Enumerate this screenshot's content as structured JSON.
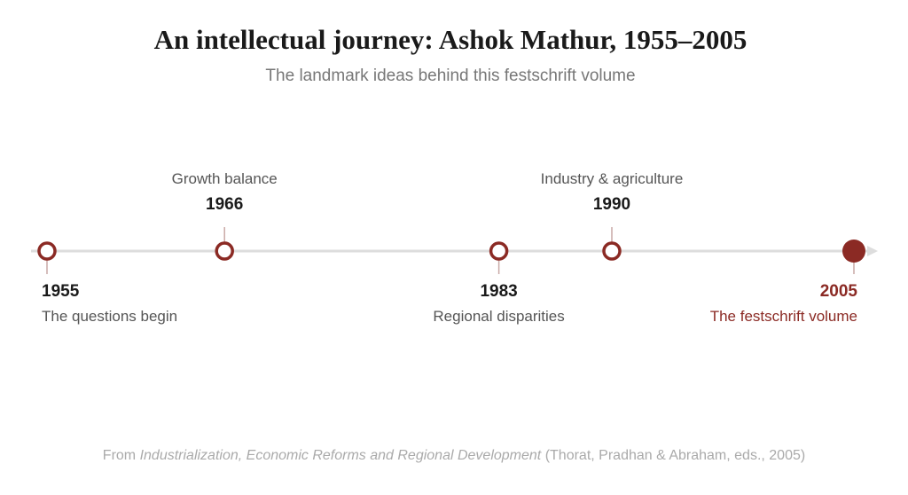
{
  "header": {
    "title": "An intellectual journey: Ashok Mathur, 1955–2005",
    "subtitle": "The landmark ideas behind this festschrift volume"
  },
  "events": [
    {
      "year": 1955,
      "label": "The questions begin"
    },
    {
      "year": 1966,
      "label": "Growth balance"
    },
    {
      "year": 1983,
      "label": "Regional disparities"
    },
    {
      "year": 1990,
      "label": "Industry & agriculture"
    },
    {
      "year": 2005,
      "label": "The festschrift volume"
    }
  ],
  "footer": {
    "prefix": "From",
    "book": "Industrialization, Economic Reforms and Regional Development",
    "suffix": "(Thorat, Pradhan & Abraham, eds., 2005)"
  }
}
